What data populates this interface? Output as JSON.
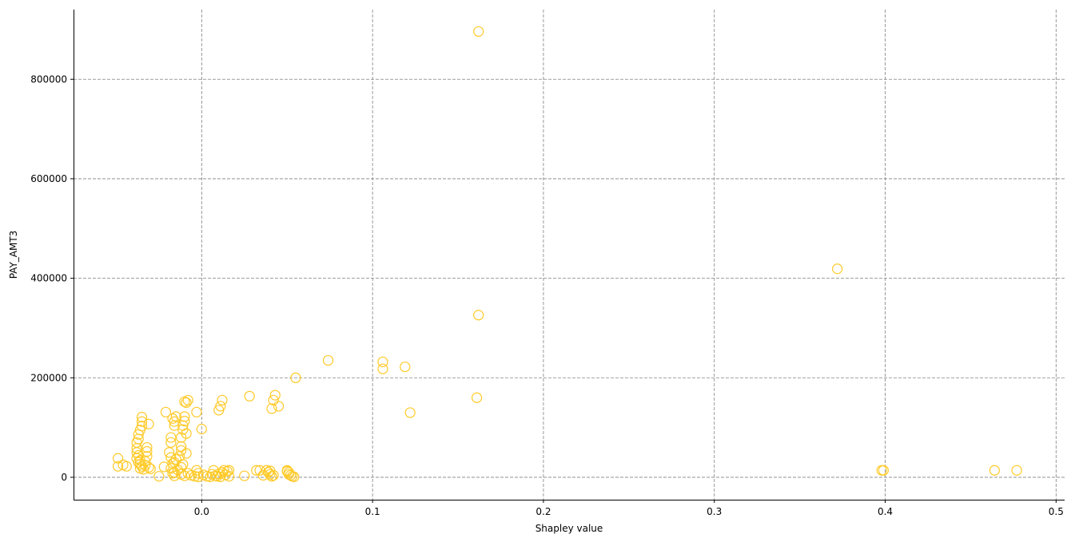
{
  "chart_data": {
    "type": "scatter",
    "title": "",
    "xlabel": "Shapley value",
    "ylabel": "PAY_AMT3",
    "xlim": [
      -0.075,
      0.505
    ],
    "ylim": [
      -45000,
      940000
    ],
    "x_ticks": [
      0.0,
      0.1,
      0.2,
      0.3,
      0.4,
      0.5
    ],
    "x_tick_labels": [
      "0.0",
      "0.1",
      "0.2",
      "0.3",
      "0.4",
      "0.5"
    ],
    "y_ticks": [
      0,
      200000,
      400000,
      600000,
      800000
    ],
    "y_tick_labels": [
      "0",
      "200000",
      "400000",
      "600000",
      "800000"
    ],
    "grid": true,
    "marker_color": "#FFCA28",
    "points": [
      [
        0.162,
        896000
      ],
      [
        0.372,
        419000
      ],
      [
        0.162,
        326000
      ],
      [
        0.074,
        235000
      ],
      [
        0.106,
        232000
      ],
      [
        0.106,
        218000
      ],
      [
        0.119,
        222000
      ],
      [
        0.122,
        130000
      ],
      [
        0.161,
        160000
      ],
      [
        0.055,
        200000
      ],
      [
        0.043,
        165000
      ],
      [
        0.042,
        155000
      ],
      [
        0.041,
        138000
      ],
      [
        0.045,
        143000
      ],
      [
        0.028,
        163000
      ],
      [
        0.012,
        155000
      ],
      [
        0.011,
        143000
      ],
      [
        0.01,
        135000
      ],
      [
        0.0,
        97000
      ],
      [
        -0.003,
        131000
      ],
      [
        -0.008,
        155000
      ],
      [
        -0.009,
        150000
      ],
      [
        -0.01,
        152000
      ],
      [
        -0.021,
        131000
      ],
      [
        -0.035,
        121000
      ],
      [
        -0.035,
        112000
      ],
      [
        -0.035,
        103000
      ],
      [
        -0.036,
        95000
      ],
      [
        -0.037,
        86000
      ],
      [
        -0.037,
        77000
      ],
      [
        -0.038,
        70000
      ],
      [
        -0.031,
        107000
      ],
      [
        -0.017,
        118000
      ],
      [
        -0.016,
        112000
      ],
      [
        -0.016,
        104000
      ],
      [
        -0.015,
        122000
      ],
      [
        -0.01,
        122000
      ],
      [
        -0.01,
        113000
      ],
      [
        -0.011,
        104000
      ],
      [
        -0.011,
        96000
      ],
      [
        -0.009,
        88000
      ],
      [
        -0.012,
        80000
      ],
      [
        -0.018,
        80000
      ],
      [
        -0.018,
        70000
      ],
      [
        -0.012,
        62000
      ],
      [
        -0.012,
        54000
      ],
      [
        -0.009,
        48000
      ],
      [
        -0.013,
        42000
      ],
      [
        -0.015,
        36000
      ],
      [
        -0.016,
        30000
      ],
      [
        -0.011,
        26000
      ],
      [
        -0.012,
        20000
      ],
      [
        -0.014,
        15000
      ],
      [
        -0.016,
        10000
      ],
      [
        -0.012,
        6000
      ],
      [
        -0.01,
        3000
      ],
      [
        -0.008,
        8000
      ],
      [
        -0.006,
        4000
      ],
      [
        -0.004,
        2000
      ],
      [
        -0.002,
        1000
      ],
      [
        -0.019,
        50000
      ],
      [
        -0.018,
        40000
      ],
      [
        -0.017,
        28000
      ],
      [
        -0.018,
        18000
      ],
      [
        -0.017,
        8000
      ],
      [
        -0.016,
        3000
      ],
      [
        -0.022,
        21000
      ],
      [
        -0.025,
        2000
      ],
      [
        -0.038,
        58000
      ],
      [
        -0.038,
        50000
      ],
      [
        -0.037,
        44000
      ],
      [
        -0.038,
        38000
      ],
      [
        -0.036,
        34000
      ],
      [
        -0.037,
        30000
      ],
      [
        -0.036,
        26000
      ],
      [
        -0.035,
        22000
      ],
      [
        -0.036,
        18000
      ],
      [
        -0.034,
        16000
      ],
      [
        -0.033,
        24000
      ],
      [
        -0.033,
        32000
      ],
      [
        -0.032,
        42000
      ],
      [
        -0.032,
        52000
      ],
      [
        -0.032,
        60000
      ],
      [
        -0.031,
        20000
      ],
      [
        -0.03,
        17000
      ],
      [
        -0.049,
        38000
      ],
      [
        -0.049,
        22000
      ],
      [
        -0.046,
        25000
      ],
      [
        -0.044,
        22000
      ],
      [
        -0.003,
        14000
      ],
      [
        -0.002,
        8000
      ],
      [
        0.001,
        5000
      ],
      [
        0.003,
        2000
      ],
      [
        0.005,
        1000
      ],
      [
        0.006,
        6000
      ],
      [
        0.007,
        14000
      ],
      [
        0.008,
        3000
      ],
      [
        0.009,
        2000
      ],
      [
        0.01,
        7000
      ],
      [
        0.011,
        1000
      ],
      [
        0.012,
        10000
      ],
      [
        0.013,
        14000
      ],
      [
        0.014,
        5000
      ],
      [
        0.015,
        12000
      ],
      [
        0.016,
        2000
      ],
      [
        0.016,
        14000
      ],
      [
        0.025,
        3000
      ],
      [
        0.032,
        14000
      ],
      [
        0.034,
        14000
      ],
      [
        0.036,
        4000
      ],
      [
        0.038,
        14000
      ],
      [
        0.039,
        10000
      ],
      [
        0.04,
        6000
      ],
      [
        0.041,
        2000
      ],
      [
        0.042,
        4000
      ],
      [
        0.04,
        13000
      ],
      [
        0.05,
        14000
      ],
      [
        0.051,
        10000
      ],
      [
        0.051,
        6000
      ],
      [
        0.052,
        4000
      ],
      [
        0.053,
        2000
      ],
      [
        0.054,
        1000
      ],
      [
        0.05,
        12000
      ],
      [
        0.398,
        14000
      ],
      [
        0.399,
        14000
      ],
      [
        0.464,
        14000
      ],
      [
        0.477,
        14000
      ]
    ]
  }
}
